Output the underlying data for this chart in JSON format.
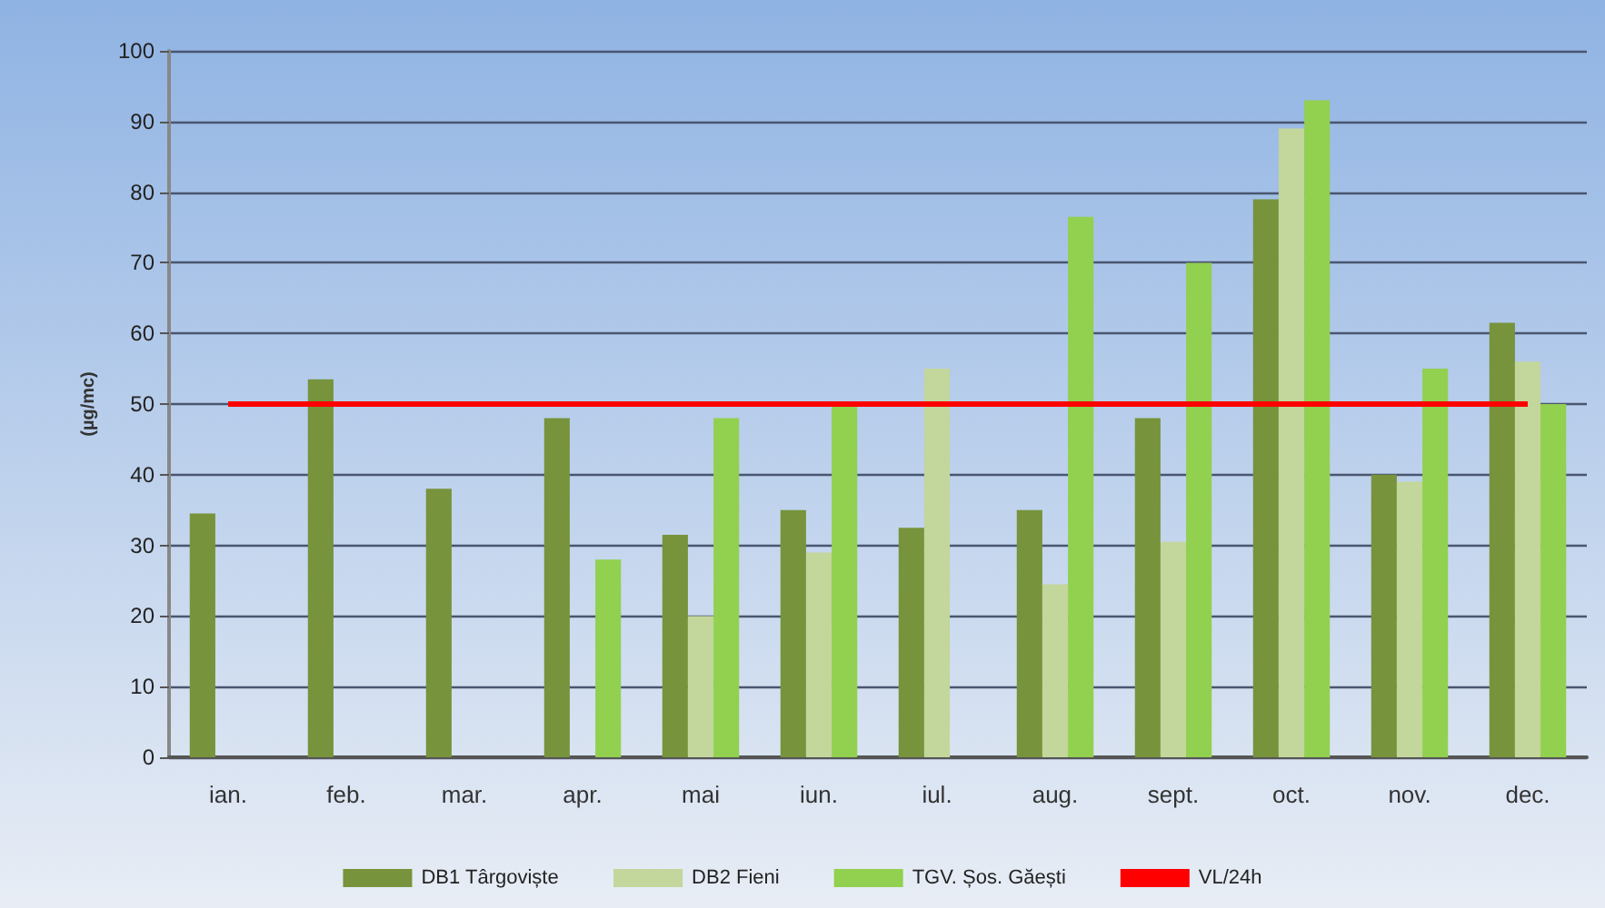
{
  "chart_data": {
    "type": "bar",
    "ylabel": "(µg/mc)",
    "categories": [
      "ian.",
      "feb.",
      "mar.",
      "apr.",
      "mai",
      "iun.",
      "iul.",
      "aug.",
      "sept.",
      "oct.",
      "nov.",
      "dec."
    ],
    "series": [
      {
        "name": "DB1 Târgoviște",
        "color": "#77933c",
        "values": [
          34.5,
          53.5,
          38,
          48,
          31.5,
          35,
          32.5,
          35,
          48,
          79,
          40,
          61.5
        ]
      },
      {
        "name": "DB2 Fieni",
        "color": "#c3d69b",
        "values": [
          null,
          null,
          null,
          null,
          20,
          29,
          55,
          24.5,
          30.5,
          89,
          39,
          56
        ]
      },
      {
        "name": "TGV. Șos. Găești",
        "color": "#92d050",
        "values": [
          null,
          null,
          null,
          28,
          48,
          50,
          null,
          76.5,
          70,
          93,
          55,
          50
        ]
      }
    ],
    "ref_lines": [
      {
        "axis": "y",
        "value": 50,
        "label": "VL/24h",
        "color": "#ff0000"
      }
    ],
    "ylim": [
      0,
      100
    ],
    "yticks": [
      0,
      10,
      20,
      30,
      40,
      50,
      60,
      70,
      80,
      90,
      100
    ],
    "grid": "y",
    "legend": "bottom"
  }
}
